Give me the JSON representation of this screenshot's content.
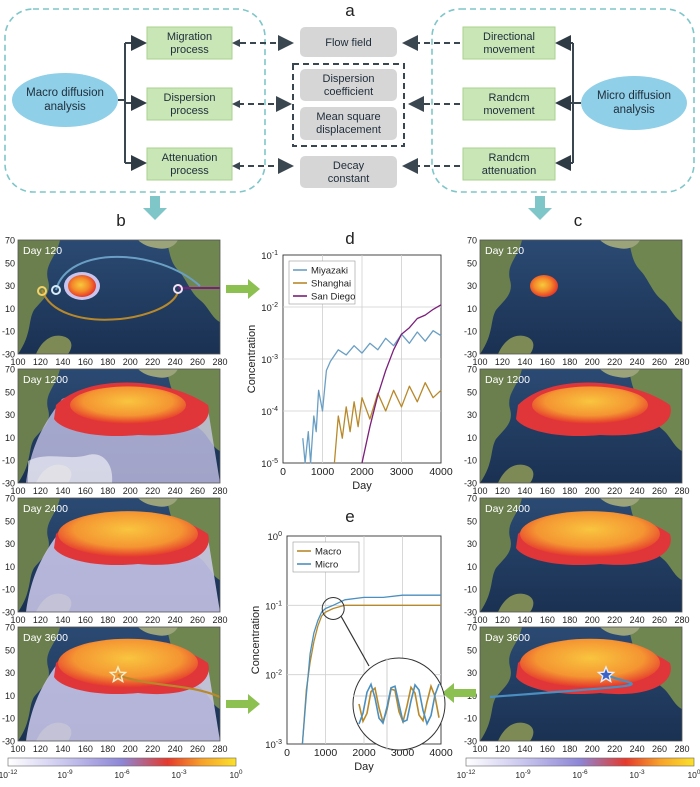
{
  "panel_labels": {
    "a": "a",
    "b": "b",
    "c": "c",
    "d": "d",
    "e": "e"
  },
  "flow": {
    "macro": "Macro diffusion analysis",
    "micro": "Micro diffusion analysis",
    "migration": "Migration process",
    "dispersion": "Dispersion process",
    "attenuation": "Attenuation process",
    "flow_field": "Flow field",
    "dispersion_coef": "Dispersion coefficient",
    "msd": "Mean square displacement",
    "decay": "Decay constant",
    "directional": "Directional movement",
    "random_move": "Randcm movement",
    "random_att": "Randcm attenuation"
  },
  "maps": {
    "days": [
      "Day 120",
      "Day 1200",
      "Day 2400",
      "Day 3600"
    ],
    "y_ticks": [
      "70",
      "50",
      "30",
      "10",
      "-10",
      "-30"
    ],
    "x_ticks": [
      "100",
      "120",
      "140",
      "160",
      "180",
      "200",
      "220",
      "240",
      "260",
      "280"
    ],
    "colorbar_ticks": [
      "10",
      "10",
      "10",
      "10",
      "10"
    ],
    "colorbar_exps": [
      "-12",
      "-9",
      "-6",
      "-3",
      "0"
    ]
  },
  "colors": {
    "miyazaki": "#6a9fc4",
    "shanghai": "#b8892a",
    "san_diego": "#7b1f7a",
    "macro": "#b8892a",
    "micro": "#4a8fbf",
    "dash": "#3a4750",
    "teal": "#7fc6c9",
    "arrow_green": "#8cc152"
  },
  "chart_data": [
    {
      "type": "line",
      "panel": "d",
      "xlabel": "Day",
      "ylabel": "Concentration",
      "xlim": [
        0,
        4000
      ],
      "ylim_log10": [
        -5,
        -1
      ],
      "x_ticks": [
        "0",
        "1000",
        "2000",
        "3000",
        "4000"
      ],
      "y_tick_exps": [
        "-5",
        "-4",
        "-3",
        "-2",
        "-1"
      ],
      "legend": "top-left",
      "series": [
        {
          "name": "Miyazaki",
          "x": [
            500,
            560,
            640,
            700,
            780,
            840,
            900,
            1000,
            1100,
            1200,
            1400,
            1600,
            1800,
            2000,
            2200,
            2400,
            2600,
            2800,
            3000,
            3200,
            3400,
            3600,
            3800,
            4000
          ],
          "y": [
            3e-05,
            1e-05,
            4e-05,
            1e-05,
            8e-05,
            4e-05,
            0.00025,
            0.0001,
            0.0006,
            0.0009,
            0.0015,
            0.0012,
            0.0018,
            0.0013,
            0.002,
            0.0015,
            0.0025,
            0.0018,
            0.003,
            0.002,
            0.0033,
            0.0022,
            0.0035,
            0.0028
          ]
        },
        {
          "name": "Shanghai",
          "x": [
            1300,
            1400,
            1500,
            1600,
            1700,
            1800,
            1900,
            2000,
            2200,
            2400,
            2600,
            2800,
            3000,
            3200,
            3400,
            3600,
            3800,
            4000
          ],
          "y": [
            1e-05,
            8e-05,
            3e-05,
            0.00012,
            4e-05,
            0.00015,
            5e-05,
            0.00018,
            7e-05,
            0.00022,
            0.0001,
            0.00025,
            0.00012,
            0.0003,
            0.00015,
            0.00035,
            0.00018,
            0.00025
          ]
        },
        {
          "name": "San Diego",
          "x": [
            2000,
            2200,
            2400,
            2600,
            2800,
            3000,
            3200,
            3400,
            3600,
            3800,
            4000
          ],
          "y": [
            1e-05,
            5e-05,
            0.0002,
            0.0006,
            0.0015,
            0.003,
            0.004,
            0.006,
            0.007,
            0.009,
            0.011
          ]
        }
      ]
    },
    {
      "type": "line",
      "panel": "e",
      "xlabel": "Day",
      "ylabel": "Concentration",
      "xlim": [
        0,
        4000
      ],
      "ylim_log10": [
        -3,
        0
      ],
      "x_ticks": [
        "0",
        "1000",
        "2000",
        "3000",
        "4000"
      ],
      "y_tick_exps": [
        "-3",
        "-2",
        "-1",
        "0"
      ],
      "legend": "top-left",
      "series": [
        {
          "name": "Macro",
          "x": [
            400,
            500,
            600,
            700,
            800,
            900,
            1000,
            1200,
            1500,
            2000,
            2500,
            3000,
            3500,
            4000
          ],
          "y": [
            0.001,
            0.006,
            0.015,
            0.03,
            0.05,
            0.07,
            0.08,
            0.09,
            0.1,
            0.1,
            0.1,
            0.1,
            0.1,
            0.1
          ]
        },
        {
          "name": "Micro",
          "x": [
            400,
            500,
            600,
            700,
            800,
            900,
            1000,
            1200,
            1500,
            2000,
            2500,
            3000,
            3500,
            4000
          ],
          "y": [
            0.001,
            0.005,
            0.02,
            0.04,
            0.06,
            0.08,
            0.09,
            0.1,
            0.12,
            0.13,
            0.13,
            0.14,
            0.14,
            0.14
          ]
        }
      ]
    }
  ]
}
